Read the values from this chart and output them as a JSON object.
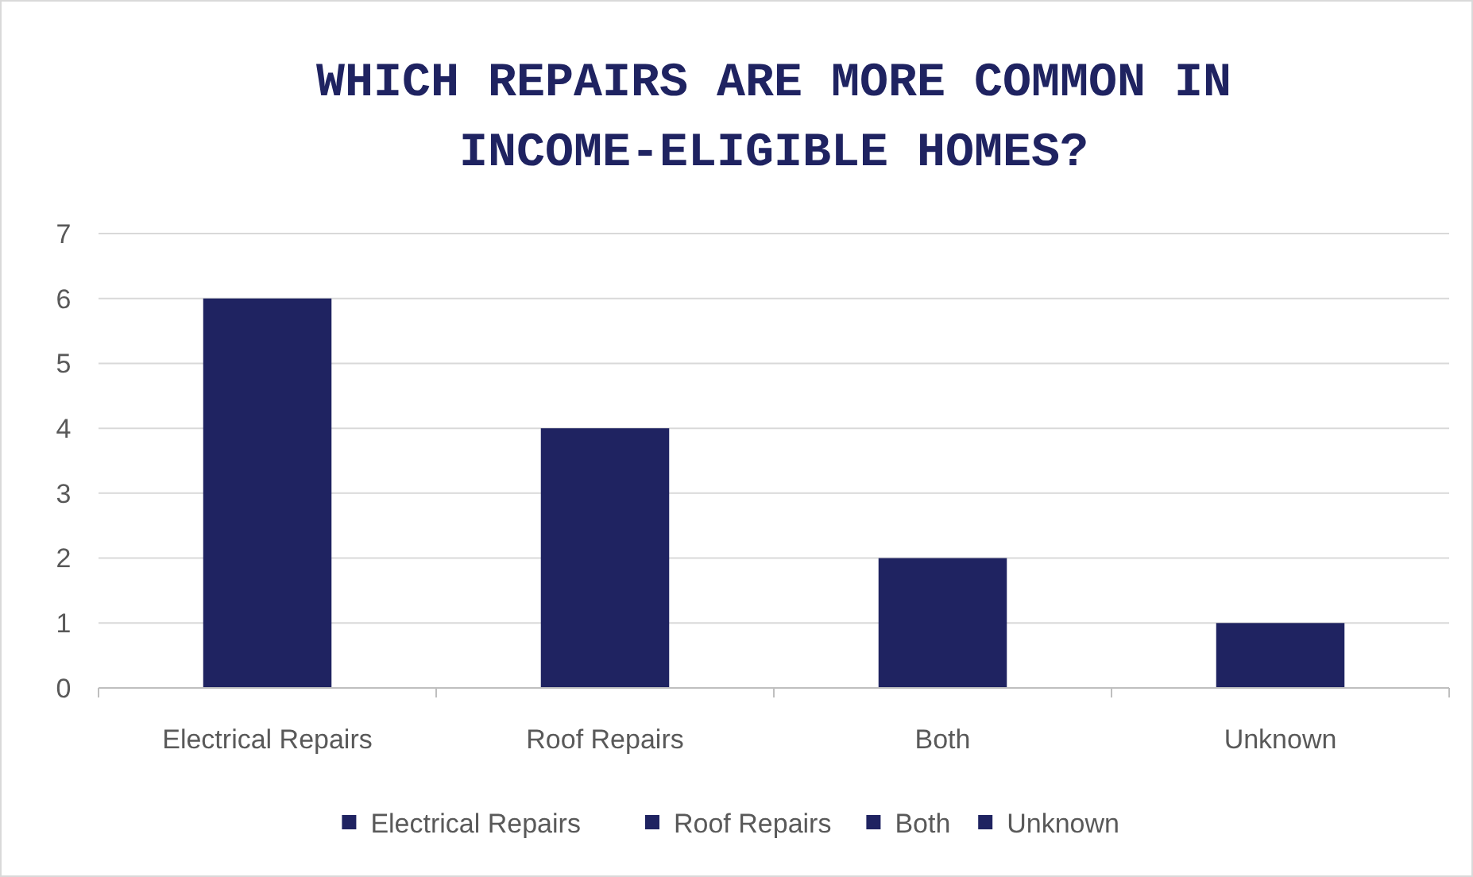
{
  "chart_data": {
    "type": "bar",
    "title": "WHICH REPAIRS ARE MORE COMMON IN INCOME-ELIGIBLE HOMES?",
    "categories": [
      "Electrical Repairs",
      "Roof Repairs",
      "Both",
      "Unknown"
    ],
    "series": [
      {
        "name": "Electrical Repairs",
        "color": "#1f2361",
        "values": [
          6,
          null,
          null,
          null
        ]
      },
      {
        "name": "Roof Repairs",
        "color": "#1f2361",
        "values": [
          null,
          4,
          null,
          null
        ]
      },
      {
        "name": "Both",
        "color": "#1f2361",
        "values": [
          null,
          null,
          2,
          null
        ]
      },
      {
        "name": "Unknown",
        "color": "#1f2361",
        "values": [
          null,
          null,
          null,
          1
        ]
      }
    ],
    "ylim": [
      0,
      7
    ],
    "yticks": [
      0,
      1,
      2,
      3,
      4,
      5,
      6,
      7
    ],
    "grid": "y",
    "legend": "bottom"
  }
}
